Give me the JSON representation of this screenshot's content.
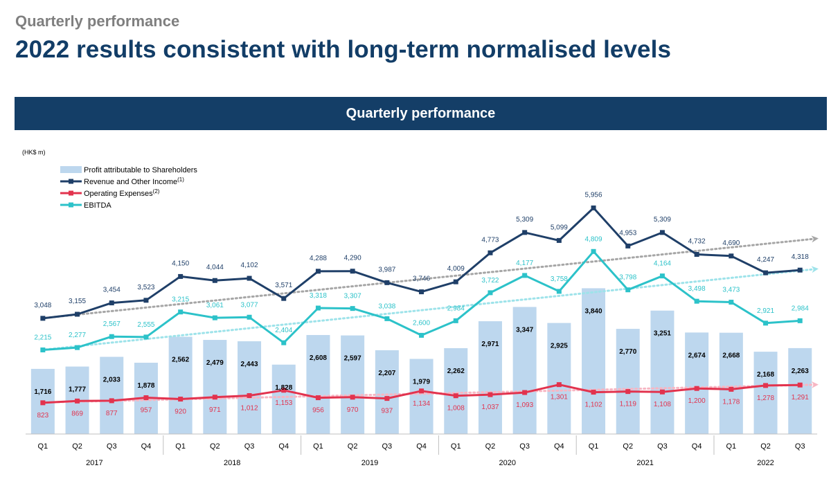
{
  "header": {
    "subtitle": "Quarterly performance",
    "title": "2022 results consistent with long-term normalised levels"
  },
  "banner": {
    "text": "Quarterly performance"
  },
  "colors": {
    "title": "#123d67",
    "banner": "#143e67",
    "bars": "#bdd7ee",
    "revenue": "#1f3f68",
    "opex": "#e2334e",
    "ebitda": "#2cc2c9",
    "trend_revenue": "#a6a6a6",
    "trend_ebitda": "#9ee3ea",
    "trend_opex": "#f7b6c3"
  },
  "chart_data": {
    "type": "bar+line",
    "unit_label": "(HK$ m)",
    "categories": [
      "Q1",
      "Q2",
      "Q3",
      "Q4",
      "Q1",
      "Q2",
      "Q3",
      "Q4",
      "Q1",
      "Q2",
      "Q3",
      "Q4",
      "Q1",
      "Q2",
      "Q3",
      "Q4",
      "Q1",
      "Q2",
      "Q3",
      "Q4",
      "Q1",
      "Q2",
      "Q3"
    ],
    "years": [
      {
        "label": "2017",
        "start": 0,
        "count": 4
      },
      {
        "label": "2018",
        "start": 4,
        "count": 4
      },
      {
        "label": "2019",
        "start": 8,
        "count": 4
      },
      {
        "label": "2020",
        "start": 12,
        "count": 4
      },
      {
        "label": "2021",
        "start": 16,
        "count": 4
      },
      {
        "label": "2022",
        "start": 20,
        "count": 3
      }
    ],
    "series": [
      {
        "name": "Profit attributable to Shareholders",
        "sup": "",
        "kind": "bar",
        "values": [
          1716,
          1777,
          2033,
          1878,
          2562,
          2479,
          2443,
          1828,
          2608,
          2597,
          2207,
          1979,
          2262,
          2971,
          3347,
          2925,
          3840,
          2770,
          3251,
          2674,
          2668,
          2168,
          2263
        ],
        "labels": [
          "1,716",
          "1,777",
          "2,033",
          "1,878",
          "2,562",
          "2,479",
          "2,443",
          "1,828",
          "2,608",
          "2,597",
          "2,207",
          "1,979",
          "2,262",
          "2,971",
          "3,347",
          "2,925",
          "3,840",
          "2,770",
          "3,251",
          "2,674",
          "2,668",
          "2,168",
          "2,263"
        ]
      },
      {
        "name": "Revenue and Other Income",
        "sup": "(1)",
        "kind": "line",
        "values": [
          3048,
          3155,
          3454,
          3523,
          4150,
          4044,
          4102,
          3571,
          4288,
          4290,
          3987,
          3746,
          4009,
          4773,
          5309,
          5099,
          5956,
          4953,
          5309,
          4732,
          4690,
          4247,
          4318
        ],
        "labels": [
          "3,048",
          "3,155",
          "3,454",
          "3,523",
          "4,150",
          "4,044",
          "4,102",
          "3,571",
          "4,288",
          "4,290",
          "3,987",
          "3,746",
          "4,009",
          "4,773",
          "5,309",
          "5,099",
          "5,956",
          "4,953",
          "5,309",
          "4,732",
          "4,690",
          "4,247",
          "4,318"
        ]
      },
      {
        "name": "Operating Expenses",
        "sup": "(2)",
        "kind": "line",
        "values": [
          823,
          869,
          877,
          957,
          920,
          971,
          1012,
          1153,
          956,
          970,
          937,
          1134,
          1008,
          1037,
          1093,
          1301,
          1102,
          1119,
          1108,
          1200,
          1178,
          1278,
          1291
        ],
        "labels": [
          "823",
          "869",
          "877",
          "957",
          "920",
          "971",
          "1,012",
          "1,153",
          "956",
          "970",
          "937",
          "1,134",
          "1,008",
          "1,037",
          "1,093",
          "1,301",
          "1,102",
          "1,119",
          "1,108",
          "1,200",
          "1,178",
          "1,278",
          "1,291"
        ]
      },
      {
        "name": "EBITDA",
        "sup": "",
        "kind": "line",
        "values": [
          2215,
          2277,
          2567,
          2555,
          3215,
          3061,
          3077,
          2404,
          3318,
          3307,
          3038,
          2600,
          2984,
          3722,
          4177,
          3758,
          4809,
          3798,
          4164,
          3498,
          3473,
          2921,
          2984
        ],
        "labels": [
          "2,215",
          "2,277",
          "2,567",
          "2,555",
          "3,215",
          "3,061",
          "3,077",
          "2,404",
          "3,318",
          "3,307",
          "3,038",
          "2,600",
          "2,984",
          "3,722",
          "4,177",
          "3,758",
          "4,809",
          "3,798",
          "4,164",
          "3,498",
          "3,473",
          "2,921",
          "2,984"
        ]
      }
    ],
    "trendlines": [
      {
        "series": "Revenue and Other Income",
        "from": 3048,
        "to": 5150
      },
      {
        "series": "EBITDA",
        "from": 2215,
        "to": 4350
      },
      {
        "series": "Operating Expenses",
        "from": 830,
        "to": 1300
      }
    ],
    "ylim": [
      0,
      6200
    ],
    "legend_position": "top-left"
  }
}
